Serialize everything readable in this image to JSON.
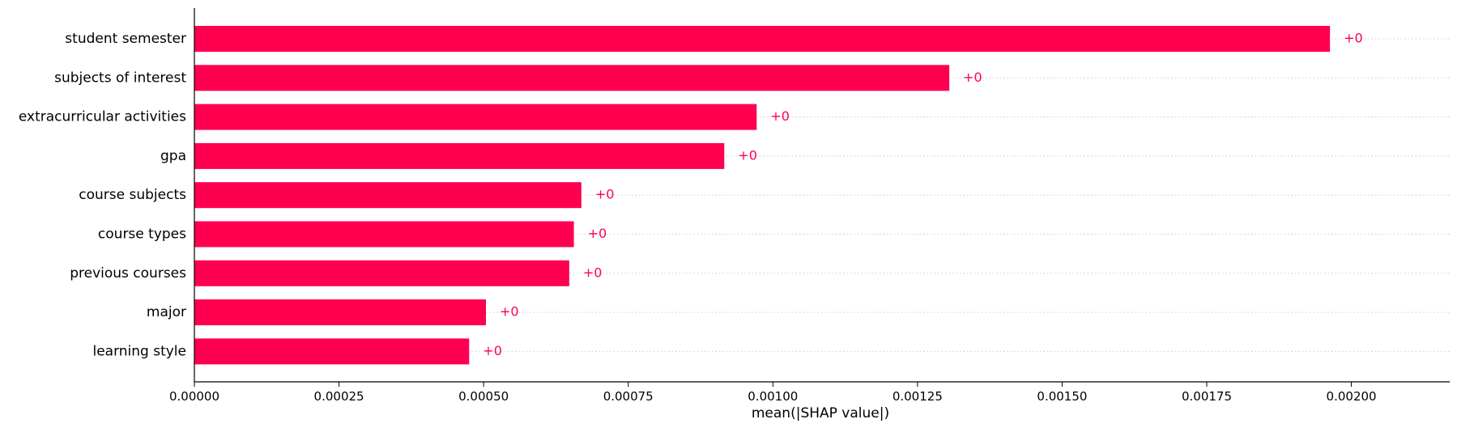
{
  "chart_data": {
    "type": "bar",
    "orientation": "horizontal",
    "categories": [
      "student semester",
      "subjects of interest",
      "extracurricular activities",
      "gpa",
      "course subjects",
      "course types",
      "previous courses",
      "major",
      "learning style"
    ],
    "values": [
      0.001963,
      0.001305,
      0.000972,
      0.000916,
      0.000669,
      0.000656,
      0.000648,
      0.000504,
      0.000475
    ],
    "data_labels": [
      "+0",
      "+0",
      "+0",
      "+0",
      "+0",
      "+0",
      "+0",
      "+0",
      "+0"
    ],
    "xlabel": "mean(|SHAP value|)",
    "ylabel": "",
    "title": "",
    "xlim": [
      0,
      0.00217
    ],
    "xticks": [
      0,
      0.00025,
      0.0005,
      0.00075,
      0.001,
      0.00125,
      0.0015,
      0.00175,
      0.002
    ],
    "xtick_labels": [
      "0.00000",
      "0.00025",
      "0.00050",
      "0.00075",
      "0.00100",
      "0.00125",
      "0.00150",
      "0.00175",
      "0.00200"
    ],
    "grid": "dotted horizontal row guides",
    "legend": "none",
    "colors": {
      "bar": "#ff0051",
      "data_label": "#ff0051",
      "row_guide": "#cccccc",
      "axis": "#000000"
    }
  }
}
